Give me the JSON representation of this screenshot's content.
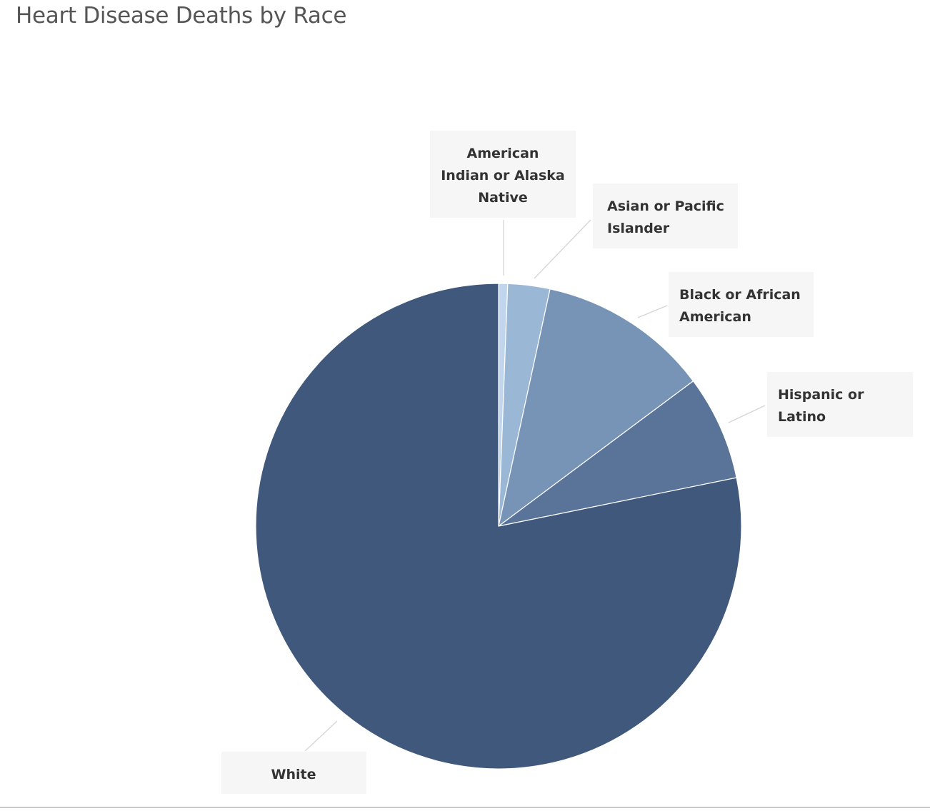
{
  "page": {
    "title": "Heart Disease Deaths by Race"
  },
  "colors": {
    "american_indian": "#c0d6ec",
    "asian": "#9ab7d6",
    "black": "#7794b7",
    "hispanic": "#5a7399",
    "white": "#3f587b",
    "label_bg": "#f6f6f6",
    "leader": "#d5d5d5"
  },
  "chart_data": {
    "type": "pie",
    "title": "Heart Disease Deaths by Race",
    "start": "12 o'clock, clockwise",
    "slices": [
      {
        "label": "American Indian or Alaska Native",
        "lines": [
          "American",
          "Indian or Alaska",
          "Native"
        ],
        "value": 0.6,
        "color": "#c0d6ec"
      },
      {
        "label": "Asian or Pacific Islander",
        "lines": [
          "Asian or Pacific",
          "Islander"
        ],
        "value": 2.8,
        "color": "#9ab7d6"
      },
      {
        "label": "Black or African American",
        "lines": [
          "Black or African",
          "American"
        ],
        "value": 11.4,
        "color": "#7794b7"
      },
      {
        "label": "Hispanic or Latino",
        "lines": [
          "Hispanic or",
          "Latino"
        ],
        "value": 7.0,
        "color": "#5a7399"
      },
      {
        "label": "White",
        "lines": [
          "White"
        ],
        "value": 78.2,
        "color": "#3f587b"
      }
    ]
  }
}
